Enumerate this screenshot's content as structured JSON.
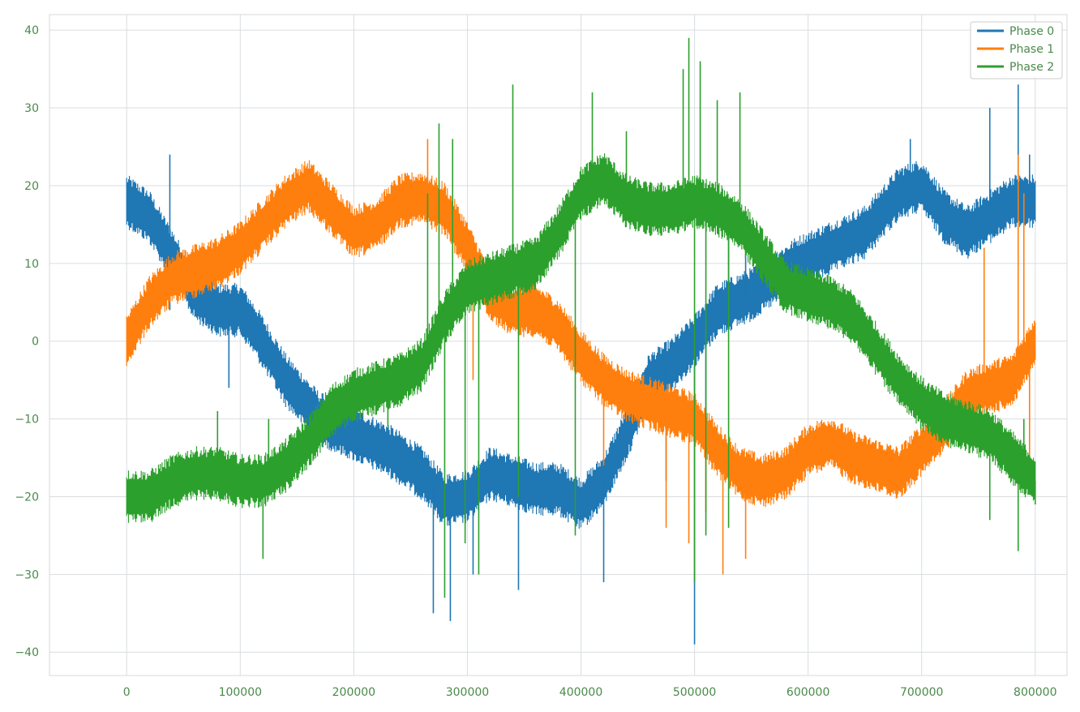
{
  "chart_data": {
    "type": "line",
    "title": "",
    "xlabel": "",
    "ylabel": "",
    "xlim": [
      -68000,
      828000
    ],
    "ylim": [
      -43,
      42
    ],
    "x_ticks": [
      0,
      100000,
      200000,
      300000,
      400000,
      500000,
      600000,
      700000,
      800000
    ],
    "x_tick_labels": [
      "0",
      "100000",
      "200000",
      "300000",
      "400000",
      "500000",
      "600000",
      "700000",
      "800000"
    ],
    "y_ticks": [
      -40,
      -30,
      -20,
      -10,
      0,
      10,
      20,
      30,
      40
    ],
    "y_tick_labels": [
      "−40",
      "−30",
      "−20",
      "−10",
      "0",
      "10",
      "20",
      "30",
      "40"
    ],
    "grid": true,
    "legend_position": "top-right",
    "x_end": 800000,
    "series": [
      {
        "name": "Phase 0",
        "color": "#1f77b4",
        "band_halfwidth": 2.8,
        "envelope": [
          [
            0,
            18
          ],
          [
            20000,
            16
          ],
          [
            40000,
            11
          ],
          [
            60000,
            6
          ],
          [
            80000,
            4
          ],
          [
            100000,
            4
          ],
          [
            115000,
            1
          ],
          [
            140000,
            -5
          ],
          [
            170000,
            -10
          ],
          [
            200000,
            -12
          ],
          [
            230000,
            -14
          ],
          [
            260000,
            -17
          ],
          [
            280000,
            -20.5
          ],
          [
            300000,
            -20
          ],
          [
            320000,
            -17
          ],
          [
            340000,
            -18
          ],
          [
            360000,
            -19
          ],
          [
            380000,
            -19
          ],
          [
            400000,
            -21
          ],
          [
            420000,
            -18
          ],
          [
            440000,
            -12
          ],
          [
            460000,
            -5
          ],
          [
            480000,
            -3
          ],
          [
            500000,
            0
          ],
          [
            520000,
            4
          ],
          [
            550000,
            6
          ],
          [
            570000,
            8
          ],
          [
            590000,
            10
          ],
          [
            620000,
            12
          ],
          [
            650000,
            14
          ],
          [
            680000,
            19
          ],
          [
            700000,
            20
          ],
          [
            720000,
            16
          ],
          [
            740000,
            14
          ],
          [
            760000,
            16
          ],
          [
            780000,
            18
          ],
          [
            800000,
            18
          ]
        ],
        "spikes": [
          [
            38000,
            24
          ],
          [
            38000,
            4
          ],
          [
            90000,
            -6
          ],
          [
            270000,
            -35
          ],
          [
            285000,
            -36
          ],
          [
            305000,
            -30
          ],
          [
            345000,
            -32
          ],
          [
            420000,
            -31
          ],
          [
            475000,
            -18
          ],
          [
            500000,
            -39
          ],
          [
            510000,
            -15
          ],
          [
            530000,
            18
          ],
          [
            545000,
            11
          ],
          [
            690000,
            26
          ],
          [
            760000,
            30
          ],
          [
            785000,
            33
          ],
          [
            795000,
            24
          ]
        ]
      },
      {
        "name": "Phase 1",
        "color": "#ff7f0e",
        "band_halfwidth": 2.8,
        "envelope": [
          [
            0,
            0
          ],
          [
            20000,
            5
          ],
          [
            40000,
            8
          ],
          [
            60000,
            9
          ],
          [
            80000,
            10
          ],
          [
            100000,
            12
          ],
          [
            120000,
            15
          ],
          [
            140000,
            18
          ],
          [
            160000,
            20
          ],
          [
            180000,
            17
          ],
          [
            200000,
            14
          ],
          [
            220000,
            15
          ],
          [
            240000,
            18
          ],
          [
            260000,
            18.5
          ],
          [
            280000,
            17
          ],
          [
            300000,
            12
          ],
          [
            320000,
            6
          ],
          [
            340000,
            4
          ],
          [
            360000,
            4
          ],
          [
            380000,
            2
          ],
          [
            400000,
            -2
          ],
          [
            420000,
            -5
          ],
          [
            440000,
            -7
          ],
          [
            460000,
            -8
          ],
          [
            480000,
            -9
          ],
          [
            500000,
            -10
          ],
          [
            520000,
            -14
          ],
          [
            540000,
            -17
          ],
          [
            560000,
            -18
          ],
          [
            580000,
            -17
          ],
          [
            600000,
            -14
          ],
          [
            620000,
            -13
          ],
          [
            640000,
            -15
          ],
          [
            660000,
            -16
          ],
          [
            680000,
            -17
          ],
          [
            700000,
            -14
          ],
          [
            720000,
            -11
          ],
          [
            740000,
            -7
          ],
          [
            760000,
            -6
          ],
          [
            780000,
            -5
          ],
          [
            800000,
            0
          ]
        ],
        "spikes": [
          [
            265000,
            26
          ],
          [
            305000,
            -5
          ],
          [
            420000,
            -16
          ],
          [
            475000,
            -24
          ],
          [
            495000,
            -26
          ],
          [
            510000,
            -22
          ],
          [
            525000,
            -30
          ],
          [
            545000,
            -28
          ],
          [
            755000,
            12
          ],
          [
            785000,
            24
          ],
          [
            790000,
            19
          ],
          [
            795000,
            -19
          ]
        ]
      },
      {
        "name": "Phase 2",
        "color": "#2ca02c",
        "band_halfwidth": 2.8,
        "envelope": [
          [
            0,
            -20
          ],
          [
            20000,
            -20
          ],
          [
            40000,
            -18
          ],
          [
            60000,
            -17
          ],
          [
            80000,
            -17
          ],
          [
            100000,
            -18
          ],
          [
            120000,
            -18
          ],
          [
            140000,
            -16
          ],
          [
            160000,
            -13
          ],
          [
            180000,
            -9
          ],
          [
            200000,
            -7
          ],
          [
            220000,
            -6
          ],
          [
            240000,
            -5
          ],
          [
            260000,
            -3
          ],
          [
            280000,
            3
          ],
          [
            300000,
            7
          ],
          [
            320000,
            8
          ],
          [
            340000,
            9
          ],
          [
            360000,
            10
          ],
          [
            380000,
            14
          ],
          [
            400000,
            19
          ],
          [
            420000,
            21
          ],
          [
            440000,
            18
          ],
          [
            460000,
            17
          ],
          [
            480000,
            17
          ],
          [
            500000,
            18
          ],
          [
            520000,
            17
          ],
          [
            540000,
            15
          ],
          [
            560000,
            11
          ],
          [
            580000,
            7
          ],
          [
            600000,
            6
          ],
          [
            620000,
            5
          ],
          [
            640000,
            3
          ],
          [
            660000,
            -1
          ],
          [
            680000,
            -5
          ],
          [
            700000,
            -8
          ],
          [
            720000,
            -10
          ],
          [
            740000,
            -11
          ],
          [
            760000,
            -12
          ],
          [
            780000,
            -15
          ],
          [
            800000,
            -18
          ]
        ],
        "spikes": [
          [
            80000,
            -9
          ],
          [
            120000,
            -28
          ],
          [
            125000,
            -10
          ],
          [
            230000,
            -11
          ],
          [
            265000,
            19
          ],
          [
            275000,
            28
          ],
          [
            280000,
            -33
          ],
          [
            287000,
            26
          ],
          [
            298000,
            -26
          ],
          [
            310000,
            -30
          ],
          [
            340000,
            33
          ],
          [
            345000,
            -20
          ],
          [
            395000,
            -25
          ],
          [
            410000,
            32
          ],
          [
            440000,
            27
          ],
          [
            490000,
            35
          ],
          [
            495000,
            39
          ],
          [
            500000,
            -31
          ],
          [
            505000,
            36
          ],
          [
            510000,
            -25
          ],
          [
            520000,
            31
          ],
          [
            530000,
            -24
          ],
          [
            540000,
            32
          ],
          [
            760000,
            -23
          ],
          [
            785000,
            -27
          ],
          [
            790000,
            -10
          ],
          [
            800000,
            -21
          ]
        ]
      }
    ]
  }
}
